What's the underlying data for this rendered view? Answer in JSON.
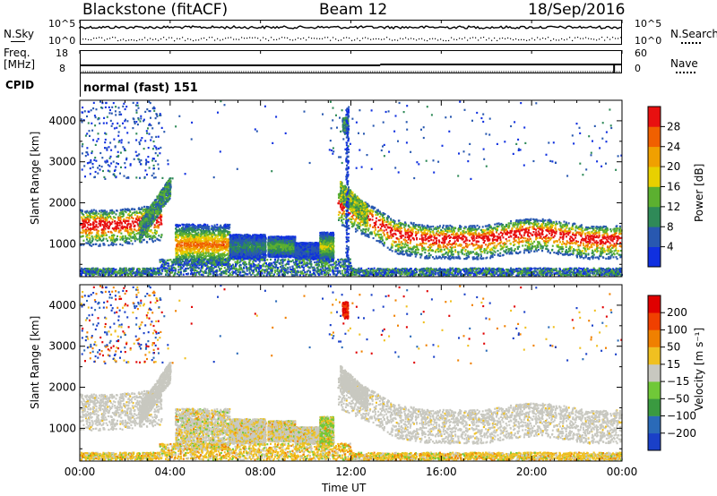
{
  "header": {
    "radar": "Blackstone (fitACF)",
    "beam": "Beam 12",
    "date": "18/Sep/2016"
  },
  "noise_panel": {
    "left_label": "N.Sky",
    "right_label": "N.Search",
    "left_ticks": [
      "10^5",
      "10^0"
    ],
    "right_ticks": [
      "10^5",
      "10^0"
    ]
  },
  "freq_panel": {
    "left_label_1": "Freq.",
    "left_label_2": "[MHz]",
    "right_label": "Nave",
    "left_ticks": [
      "18",
      "8"
    ],
    "right_ticks": [
      "60",
      "0"
    ]
  },
  "cpid": {
    "label": "CPID",
    "value": "normal (fast) 151"
  },
  "chart_data": [
    {
      "type": "heatmap",
      "panel": "power",
      "ylabel": "Slant Range [km]",
      "yticks": [
        1000,
        2000,
        3000,
        4000
      ],
      "ylim": [
        200,
        4500
      ],
      "xticks": [
        "00:00",
        "04:00",
        "08:00",
        "12:00",
        "16:00",
        "20:00",
        "00:00"
      ],
      "colorbar_label": "Power [dB]",
      "colorbar_ticks": [
        "4",
        "8",
        "12",
        "16",
        "20",
        "24",
        "28"
      ],
      "colorscale": [
        "#1030e0",
        "#2858b0",
        "#2f8a58",
        "#5cb030",
        "#e8d000",
        "#f0a000",
        "#f06000",
        "#e81010"
      ]
    },
    {
      "type": "heatmap",
      "panel": "velocity",
      "ylabel": "Slant Range [km]",
      "yticks": [
        1000,
        2000,
        3000,
        4000
      ],
      "ylim": [
        200,
        4500
      ],
      "xticks": [
        "00:00",
        "04:00",
        "08:00",
        "12:00",
        "16:00",
        "20:00",
        "00:00"
      ],
      "xlabel": "Time UT",
      "colorbar_label": "Velocity [m s⁻¹]",
      "colorbar_ticks": [
        "200",
        "100",
        "50",
        "15",
        "−15",
        "−50",
        "−100",
        "−200"
      ],
      "colorscale": [
        "#1a40c8",
        "#2a6ab8",
        "#3a9a40",
        "#70c838",
        "#c8c8c0",
        "#f0c020",
        "#f08000",
        "#f04000",
        "#e00000"
      ]
    }
  ]
}
